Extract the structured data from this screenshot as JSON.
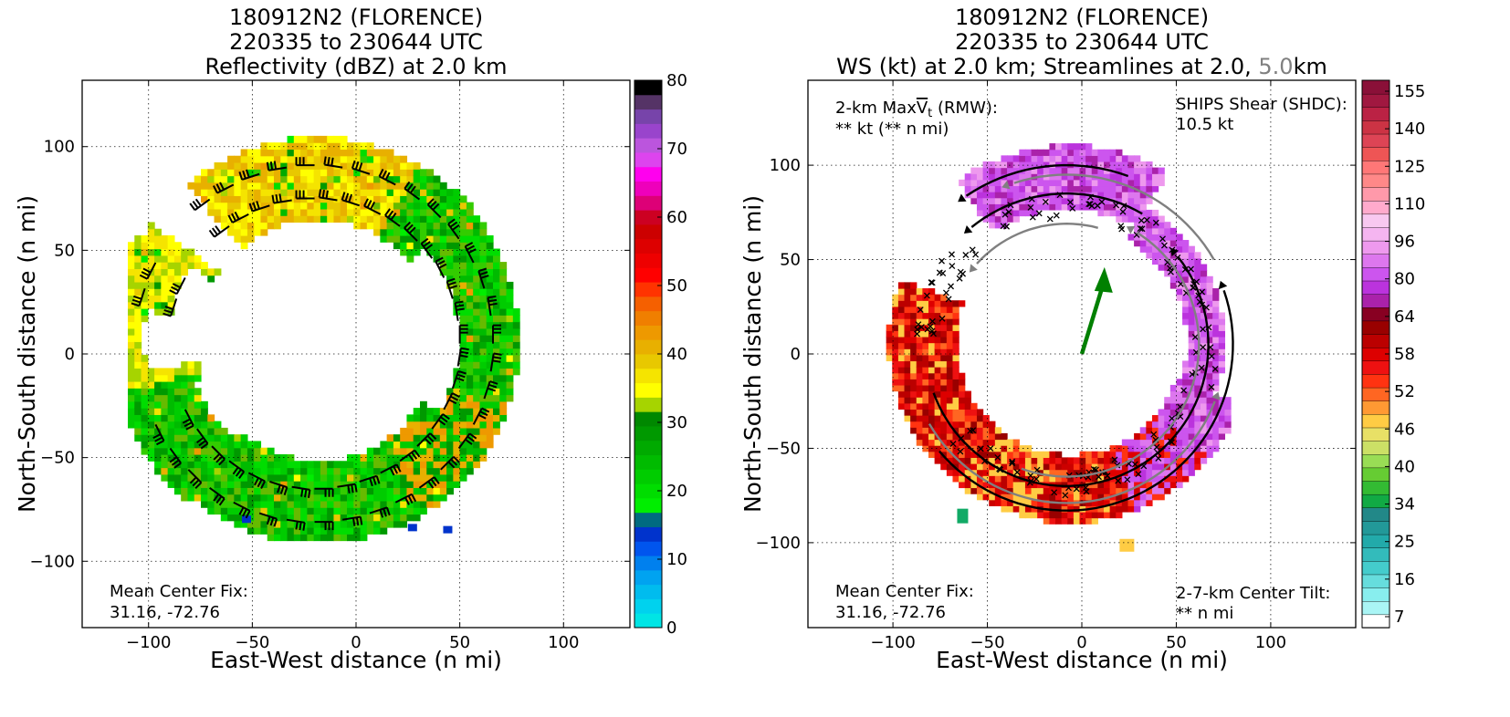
{
  "chart_data": [
    {
      "type": "heatmap",
      "title_lines": [
        "180912N2 (FLORENCE)",
        "220335 to 230644 UTC",
        "Reflectivity (dBZ) at 2.0 km"
      ],
      "xlabel": "East-West distance (n mi)",
      "ylabel": "North-South distance (n mi)",
      "xlim": [
        -132,
        132
      ],
      "ylim": [
        -132,
        132
      ],
      "xticks": [
        "−100",
        "−50",
        "0",
        "50",
        "100"
      ],
      "yticks": [
        "−100",
        "−50",
        "0",
        "50",
        "100"
      ],
      "grid": true,
      "annotation": [
        "Mean Center Fix:",
        "31.16, -72.76"
      ],
      "colorbar": {
        "ticks": [
          "0",
          "10",
          "20",
          "30",
          "40",
          "50",
          "60",
          "70",
          "80"
        ],
        "colors": [
          "#00e5e5",
          "#00d2ee",
          "#00bcee",
          "#00a3f0",
          "#0080ee",
          "#0055ee",
          "#0033cc",
          "#006b80",
          "#00ee00",
          "#00dd00",
          "#00cc00",
          "#00bb00",
          "#00aa00",
          "#009900",
          "#008800",
          "#a6d400",
          "#ffff00",
          "#f5e400",
          "#e8c800",
          "#e8b000",
          "#ee9900",
          "#f07f00",
          "#f56000",
          "#ff3300",
          "#ff0000",
          "#ee0000",
          "#dd0000",
          "#cc0000",
          "#cc0022",
          "#dd0077",
          "#ee00bb",
          "#ff00ee",
          "#dd44ee",
          "#bb55dd",
          "#9944cc",
          "#7744aa",
          "#553366",
          "#000000"
        ]
      },
      "series": [
        {
          "field": "reflectivity",
          "shape": "partial-annulus",
          "range_nmi": [
            55,
            103
          ],
          "center_nmi": [
            -20,
            5
          ]
        }
      ]
    },
    {
      "type": "heatmap",
      "title_lines": [
        "180912N2 (FLORENCE)",
        "220335 to 230644 UTC",
        "WS (kt) at 2.0 km; Streamlines at 2.0,",
        "5.0",
        "km"
      ],
      "xlabel": "East-West distance (n mi)",
      "ylabel": "North-South distance (n mi)",
      "xlim": [
        -145,
        145
      ],
      "ylim": [
        -145,
        145
      ],
      "xticks": [
        "−100",
        "−50",
        "0",
        "50",
        "100"
      ],
      "yticks": [
        "−100",
        "−50",
        "0",
        "50",
        "100"
      ],
      "grid": true,
      "annotation_top_left": [
        "2-km Max",
        "V",
        "t",
        " (RMW):",
        "** kt (** n mi)"
      ],
      "annotation_top_right": [
        "SHIPS Shear (SHDC):",
        "10.5 kt"
      ],
      "annotation_bottom_left": [
        "Mean Center Fix:",
        "31.16, -72.76"
      ],
      "annotation_bottom_right": [
        "2-7-km Center Tilt:",
        "** n mi"
      ],
      "shear_vector_end": [
        12,
        46
      ],
      "colorbar": {
        "ticks": [
          "7",
          "16",
          "25",
          "34",
          "40",
          "46",
          "52",
          "58",
          "64",
          "80",
          "96",
          "110",
          "125",
          "140",
          "155"
        ],
        "colors": [
          "#ffffff",
          "#aaf5f5",
          "#88eeee",
          "#66dddd",
          "#44cccc",
          "#33bbbb",
          "#22aaaa",
          "#229999",
          "#228888",
          "#11aa44",
          "#33bb33",
          "#66cc33",
          "#99dd55",
          "#cce066",
          "#e8e066",
          "#ffcc44",
          "#ff9933",
          "#ff6622",
          "#ff3311",
          "#ee1111",
          "#dd0000",
          "#bb0000",
          "#990000",
          "#880022",
          "#aa22aa",
          "#bb33dd",
          "#cc55ee",
          "#dd77ee",
          "#ee99ee",
          "#f5b5f0",
          "#f8c8f0",
          "#ffaacc",
          "#ff99aa",
          "#ff8888",
          "#ff7777",
          "#ee5555",
          "#dd4455",
          "#cc3344",
          "#bb2244",
          "#a01840",
          "#8a1038"
        ]
      },
      "colors": {
        "shear_text": "#008800",
        "tilt_text": "#ff0000",
        "shear_arrow": "#008000",
        "streamline_2km": "#000000",
        "streamline_5km": "#808080",
        "title_5km": "#808080"
      }
    }
  ]
}
